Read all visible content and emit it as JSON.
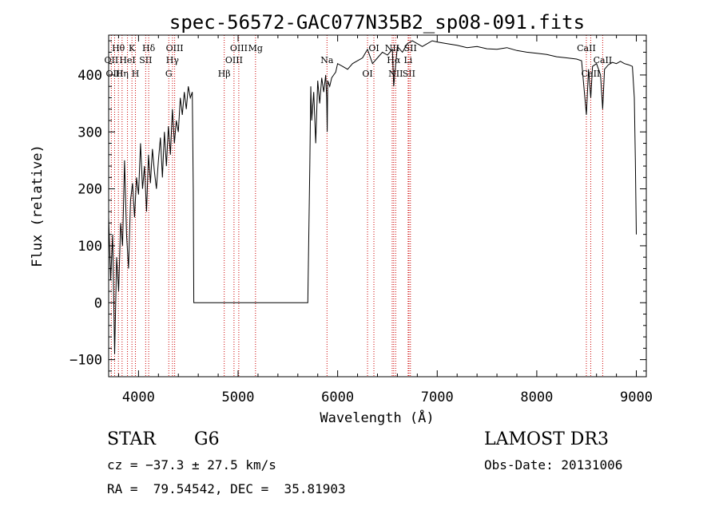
{
  "chart_data": {
    "type": "line",
    "title": "spec-56572-GAC077N35B2_sp08-091.fits",
    "xlabel": "Wavelength (Å)",
    "ylabel": "Flux (relative)",
    "xlim": [
      3700,
      9100
    ],
    "ylim": [
      -130,
      470
    ],
    "xticks": [
      4000,
      5000,
      6000,
      7000,
      8000,
      9000
    ],
    "yticks": [
      -100,
      0,
      100,
      200,
      300,
      400
    ],
    "x_tick_labels": [
      "4000",
      "5000",
      "6000",
      "7000",
      "8000",
      "9000"
    ],
    "y_tick_labels": [
      "−100",
      "0",
      "100",
      "200",
      "300",
      "400"
    ],
    "grid": false,
    "line_color": "#000000",
    "marker_color": "#cc0000",
    "series": [
      {
        "x": [
          3700,
          3720,
          3740,
          3760,
          3780,
          3800,
          3820,
          3840,
          3860,
          3880,
          3900,
          3920,
          3940,
          3960,
          3980,
          4000,
          4020,
          4040,
          4060,
          4080,
          4100,
          4120,
          4140,
          4160,
          4180,
          4200,
          4220,
          4240,
          4260,
          4280,
          4300,
          4320,
          4340,
          4360,
          4380,
          4400,
          4420,
          4440,
          4460,
          4480,
          4500,
          4520,
          4540,
          4550,
          4555,
          4600,
          5000,
          5500,
          5700,
          5720,
          5730,
          5740,
          5760,
          5780,
          5800,
          5820,
          5840,
          5860,
          5880,
          5890,
          5895,
          5900,
          5920,
          5940,
          5960,
          5980,
          6000,
          6050,
          6100,
          6150,
          6200,
          6250,
          6300,
          6350,
          6400,
          6450,
          6500,
          6550,
          6563,
          6600,
          6650,
          6700,
          6750,
          6800,
          6850,
          6900,
          6950,
          7000,
          7100,
          7200,
          7300,
          7400,
          7500,
          7600,
          7700,
          7800,
          7900,
          8000,
          8100,
          8200,
          8300,
          8400,
          8450,
          8498,
          8520,
          8542,
          8560,
          8600,
          8640,
          8662,
          8680,
          8720,
          8760,
          8800,
          8840,
          8880,
          8920,
          8960,
          8980,
          8990,
          9000
        ],
        "y": [
          150,
          40,
          120,
          -90,
          80,
          20,
          140,
          100,
          250,
          120,
          60,
          180,
          210,
          150,
          220,
          190,
          280,
          200,
          240,
          160,
          260,
          210,
          270,
          230,
          200,
          250,
          290,
          220,
          300,
          240,
          310,
          260,
          340,
          280,
          320,
          300,
          360,
          330,
          370,
          340,
          380,
          360,
          370,
          200,
          0,
          0,
          0,
          0,
          0,
          240,
          380,
          320,
          370,
          280,
          390,
          350,
          395,
          370,
          400,
          360,
          300,
          390,
          380,
          395,
          400,
          405,
          420,
          415,
          410,
          420,
          425,
          430,
          445,
          420,
          430,
          440,
          435,
          445,
          380,
          450,
          440,
          455,
          460,
          455,
          450,
          455,
          460,
          458,
          455,
          452,
          448,
          450,
          446,
          445,
          448,
          443,
          440,
          438,
          436,
          432,
          430,
          428,
          425,
          330,
          410,
          360,
          415,
          420,
          400,
          340,
          410,
          418,
          422,
          420,
          424,
          420,
          418,
          415,
          360,
          250,
          120
        ]
      }
    ],
    "lines": [
      {
        "label": "Hθ",
        "x": 3798
      },
      {
        "label": "OII",
        "x": 3727
      },
      {
        "label": "OIII",
        "x": 3760
      },
      {
        "label": "K",
        "x": 3934
      },
      {
        "label": "HeI",
        "x": 3889
      },
      {
        "label": "Hη",
        "x": 3835
      },
      {
        "label": "Hδ",
        "x": 4102
      },
      {
        "label": "SII",
        "x": 4072
      },
      {
        "label": "H",
        "x": 3969
      },
      {
        "label": "OIII",
        "x": 4363
      },
      {
        "label": "Hγ",
        "x": 4341
      },
      {
        "label": "G",
        "x": 4304
      },
      {
        "label": "OIII",
        "x": 5007
      },
      {
        "label": "OIII",
        "x": 4959
      },
      {
        "label": "Hβ",
        "x": 4861
      },
      {
        "label": "Mg",
        "x": 5175
      },
      {
        "label": "Na",
        "x": 5893
      },
      {
        "label": "OI",
        "x": 6300
      },
      {
        "label": "OI",
        "x": 6364
      },
      {
        "label": "Hα",
        "x": 6563
      },
      {
        "label": "SII",
        "x": 6716
      },
      {
        "label": "NII",
        "x": 6548
      },
      {
        "label": "Li",
        "x": 6708
      },
      {
        "label": "NII",
        "x": 6583
      },
      {
        "label": "SII",
        "x": 6731
      },
      {
        "label": "CaII",
        "x": 8662
      },
      {
        "label": "CaII",
        "x": 8542
      },
      {
        "label": "CaII",
        "x": 8498
      }
    ]
  },
  "info": {
    "obj_class": "STAR",
    "subclass": "G6",
    "survey": "LAMOST DR3",
    "cz": "cz = −37.3 ± 27.5 km/s",
    "obs_date": "Obs-Date: 20131006",
    "radec": "RA =  79.54542, DEC =  35.81903"
  }
}
